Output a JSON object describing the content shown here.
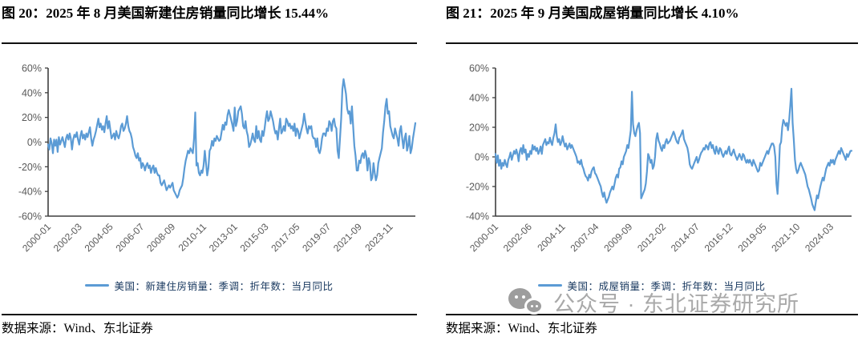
{
  "page": {
    "background": "#ffffff",
    "accent_blue": "#5B9BD5",
    "axis_color": "#3f3f3f",
    "tick_label_color": "#595959",
    "legend_text_color": "#17375E",
    "watermark_color": "#a9a9a9"
  },
  "panels": [
    {
      "title": "图 20：2025 年 8 月美国新建住房销量同比增长 15.44%",
      "legend_label": "美国：新建住房销量：季调：折年数：当月同比",
      "source": "数据来源：Wind、东北证券"
    },
    {
      "title": "图 21：2025 年 9 月美国成屋销量同比增长 4.10%",
      "legend_label": "美国：成屋销量：季调：折年数：当月同比",
      "source": "数据来源：Wind、东北证券"
    }
  ],
  "watermark": {
    "icon": "wechat-icon",
    "text": "公众号 · 东北证券研究所"
  },
  "chart_data": [
    {
      "type": "line",
      "title": "图 20：2025 年 8 月美国新建住房销量同比增长 15.44%",
      "series_name": "美国：新建住房销量：季调：折年数：当月同比",
      "xlabel": "",
      "ylabel": "",
      "x_start": "2000-01",
      "x_end": "2025-08",
      "x_unit": "month",
      "ylim": [
        -60,
        60
      ],
      "ytick_step": 20,
      "ytick_labels": [
        "60%",
        "40%",
        "20%",
        "0%",
        "-20%",
        "-40%",
        "-60%"
      ],
      "xtick_labels": [
        "2000-01",
        "2002-03",
        "2004-05",
        "2006-07",
        "2008-09",
        "2010-11",
        "2013-01",
        "2015-03",
        "2017-05",
        "2019-07",
        "2021-09",
        "2023-11"
      ],
      "xtick_interval_months": 26,
      "grid": false,
      "legend_position": "bottom",
      "line_color": "#5B9BD5",
      "last_value": 15.44,
      "values": [
        -2,
        -6,
        3,
        -1,
        -9,
        2,
        -3,
        2,
        -8,
        4,
        -2,
        1,
        4,
        0,
        -4,
        3,
        6,
        2,
        7,
        3,
        -6,
        2,
        6,
        4,
        8,
        2,
        -2,
        5,
        9,
        3,
        6,
        2,
        7,
        4,
        8,
        12,
        3,
        -3,
        2,
        5,
        9,
        14,
        19,
        12,
        15,
        10,
        13,
        8,
        15,
        21,
        11,
        17,
        10,
        3,
        5,
        7,
        2,
        9,
        5,
        3,
        7,
        13,
        15,
        9,
        11,
        15,
        21,
        13,
        9,
        7,
        3,
        -4,
        -7,
        -11,
        -13,
        -9,
        -15,
        -13,
        -21,
        -17,
        -19,
        -23,
        -19,
        -17,
        -21,
        -19,
        -25,
        -21,
        -19,
        -25,
        -21,
        -25,
        -27,
        -27,
        -33,
        -35,
        -33,
        -31,
        -35,
        -39,
        -37,
        -35,
        -37,
        -35,
        -33,
        -39,
        -41,
        -43,
        -45,
        -43,
        -39,
        -37,
        -35,
        -29,
        -21,
        -15,
        -11,
        -7,
        -9,
        -5,
        -7,
        -9,
        3,
        24,
        -19,
        -17,
        -25,
        -27,
        -23,
        -25,
        -19,
        -7,
        -17,
        -27,
        -21,
        -7,
        -5,
        1,
        -3,
        3,
        1,
        5,
        3,
        1,
        2,
        8,
        14,
        10,
        16,
        14,
        22,
        26,
        22,
        18,
        14,
        9,
        28,
        13,
        17,
        25,
        27,
        29,
        23,
        13,
        11,
        17,
        9,
        5,
        -4,
        -2,
        2,
        7,
        2,
        0,
        13,
        3,
        9,
        2,
        0,
        9,
        5,
        11,
        19,
        25,
        17,
        19,
        25,
        21,
        17,
        11,
        7,
        9,
        2,
        11,
        19,
        7,
        9,
        13,
        9,
        19,
        17,
        13,
        15,
        11,
        13,
        9,
        15,
        5,
        11,
        9,
        3,
        7,
        11,
        15,
        23,
        17,
        11,
        7,
        13,
        11,
        13,
        5,
        3,
        3,
        -4,
        3,
        -7,
        -9,
        -5,
        3,
        7,
        7,
        5,
        11,
        9,
        17,
        15,
        9,
        17,
        19,
        13,
        11,
        -7,
        -13,
        3,
        19,
        43,
        51,
        45,
        39,
        27,
        23,
        25,
        15,
        29,
        13,
        -3,
        -11,
        -23,
        -23,
        -15,
        -17,
        -11,
        -9,
        -13,
        -7,
        -11,
        -23,
        -13,
        -17,
        -31,
        -29,
        -17,
        -25,
        -31,
        -27,
        -17,
        -13,
        -9,
        -5,
        8,
        17,
        29,
        35,
        23,
        25,
        13,
        9,
        5,
        3,
        11,
        7,
        3,
        -3,
        9,
        13,
        3,
        -5,
        3,
        7,
        -7,
        -3,
        5,
        -9,
        -5,
        3,
        9,
        15.44
      ]
    },
    {
      "type": "line",
      "title": "图 21：2025 年 9 月美国成屋销量同比增长 4.10%",
      "series_name": "美国：成屋销量：季调：折年数：当月同比",
      "xlabel": "",
      "ylabel": "",
      "x_start": "2000-01",
      "x_end": "2025-09",
      "x_unit": "month",
      "ylim": [
        -40,
        60
      ],
      "ytick_step": 20,
      "ytick_labels": [
        "60%",
        "40%",
        "20%",
        "0%",
        "-20%",
        "-40%"
      ],
      "xtick_labels": [
        "2000-01",
        "2002-06",
        "2004-11",
        "2007-04",
        "2009-09",
        "2012-02",
        "2014-07",
        "2016-12",
        "2019-05",
        "2021-10",
        "2024-03"
      ],
      "xtick_interval_months": 29,
      "grid": false,
      "legend_position": "bottom",
      "line_color": "#5B9BD5",
      "last_value": 4.1,
      "values": [
        2,
        -4,
        1,
        -6,
        -2,
        -8,
        -4,
        -6,
        -2,
        -5,
        -7,
        -2,
        0,
        3,
        -2,
        1,
        4,
        2,
        5,
        2,
        -3,
        4,
        6,
        2,
        8,
        3,
        5,
        -2,
        2,
        0,
        4,
        2,
        8,
        5,
        7,
        4,
        6,
        2,
        4,
        7,
        2,
        8,
        10,
        12,
        8,
        10,
        9,
        13,
        10,
        8,
        13,
        16,
        22,
        14,
        10,
        12,
        8,
        10,
        14,
        10,
        7,
        9,
        5,
        7,
        9,
        6,
        8,
        6,
        4,
        2,
        0,
        -4,
        -3,
        -5,
        -2,
        -6,
        -8,
        -11,
        -13,
        -14,
        -16,
        -12,
        -14,
        -10,
        -8,
        -7,
        -11,
        -12,
        -14,
        -16,
        -18,
        -20,
        -24,
        -27,
        -24,
        -28,
        -31,
        -29,
        -27,
        -24,
        -22,
        -20,
        -22,
        -18,
        -14,
        -12,
        -14,
        -8,
        -7,
        -3,
        -5,
        0,
        2,
        4,
        8,
        6,
        12,
        18,
        44,
        22,
        16,
        14,
        18,
        21,
        23,
        16,
        -28,
        -26,
        -24,
        -22,
        -18,
        -10,
        2,
        0,
        -4,
        -2,
        -8,
        -6,
        0,
        12,
        16,
        11,
        9,
        6,
        4,
        8,
        6,
        10,
        12,
        9,
        10,
        11,
        13,
        15,
        17,
        15,
        12,
        10,
        9,
        13,
        14,
        16,
        18,
        12,
        10,
        8,
        6,
        2,
        -5,
        -7,
        -8,
        -6,
        -4,
        -2,
        0,
        -4,
        -2,
        1,
        3,
        4,
        6,
        5,
        8,
        7,
        5,
        9,
        10,
        6,
        8,
        4,
        2,
        7,
        4,
        2,
        6,
        5,
        2,
        0,
        2,
        4,
        2,
        5,
        7,
        2,
        1,
        3,
        5,
        2,
        0,
        -2,
        0,
        2,
        0,
        -2,
        2,
        1,
        -2,
        -4,
        -2,
        -4,
        -2,
        -4,
        -6,
        -2,
        -4,
        -6,
        -8,
        -10,
        -9,
        -4,
        -6,
        -4,
        -2,
        0,
        2,
        4,
        2,
        5,
        7,
        9,
        9,
        7,
        0,
        -18,
        -25,
        -10,
        8,
        10,
        20,
        25,
        23,
        21,
        23,
        18,
        25,
        35,
        46,
        23,
        12,
        -2,
        -8,
        -11,
        -9,
        -6,
        -4,
        -6,
        -8,
        -10,
        -12,
        -16,
        -20,
        -22,
        -25,
        -28,
        -32,
        -34,
        -36,
        -31,
        -26,
        -28,
        -24,
        -20,
        -17,
        -14,
        -16,
        -12,
        -8,
        -6,
        -4,
        -6,
        -2,
        -4,
        -2,
        -5,
        -2,
        0,
        2,
        4,
        2,
        6,
        4,
        2,
        0,
        -2,
        2,
        0,
        2,
        4,
        4.1
      ]
    }
  ]
}
